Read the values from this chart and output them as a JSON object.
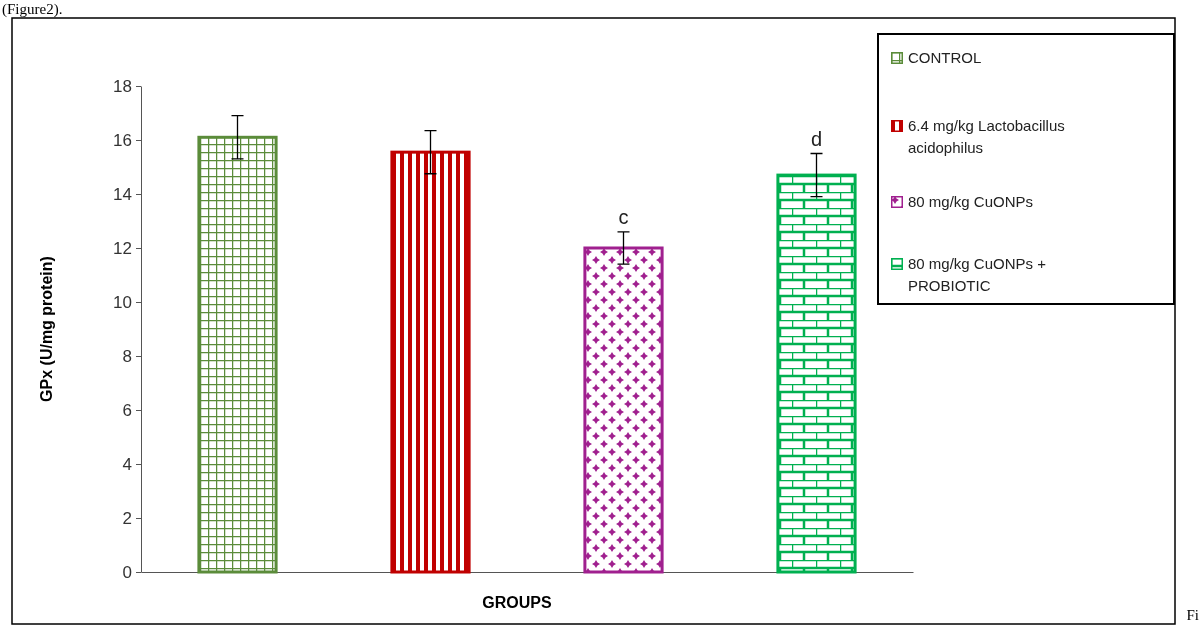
{
  "chart_data": {
    "type": "bar",
    "xlabel": "GROUPS",
    "ylabel": "GPx (U/mg protein)",
    "categories": [
      null,
      null,
      null,
      null
    ],
    "series": [
      {
        "name": "CONTROL",
        "color": "#5b8c3a",
        "values": [
          16.1,
          null,
          null,
          null
        ],
        "errors": [
          0.8,
          null,
          null,
          null
        ]
      },
      {
        "name": "6.4 mg/kg Lactobacillus acidophilus",
        "color": "#c00000",
        "values": [
          null,
          15.55,
          null,
          null
        ],
        "errors": [
          null,
          0.8,
          null,
          null
        ]
      },
      {
        "name": "80 mg/kg CuONPs",
        "color": "#a0208f",
        "values": [
          null,
          null,
          12.0,
          null
        ],
        "errors": [
          null,
          null,
          0.6,
          null
        ],
        "value_labels": [
          null,
          null,
          "c",
          null
        ]
      },
      {
        "name": "80 mg/kg CuONPs  + PROBIOTIC",
        "color": "#00b050",
        "values": [
          null,
          null,
          null,
          14.7
        ],
        "errors": [
          null,
          null,
          null,
          0.8
        ],
        "value_labels": [
          null,
          null,
          null,
          "d"
        ]
      }
    ],
    "ylim": [
      0,
      18
    ],
    "yticks": [
      0,
      2,
      4,
      6,
      8,
      10,
      12,
      14,
      16,
      18
    ],
    "grid": false,
    "legend": "right",
    "annotations": [
      "(Figure2).",
      "Fi"
    ]
  }
}
